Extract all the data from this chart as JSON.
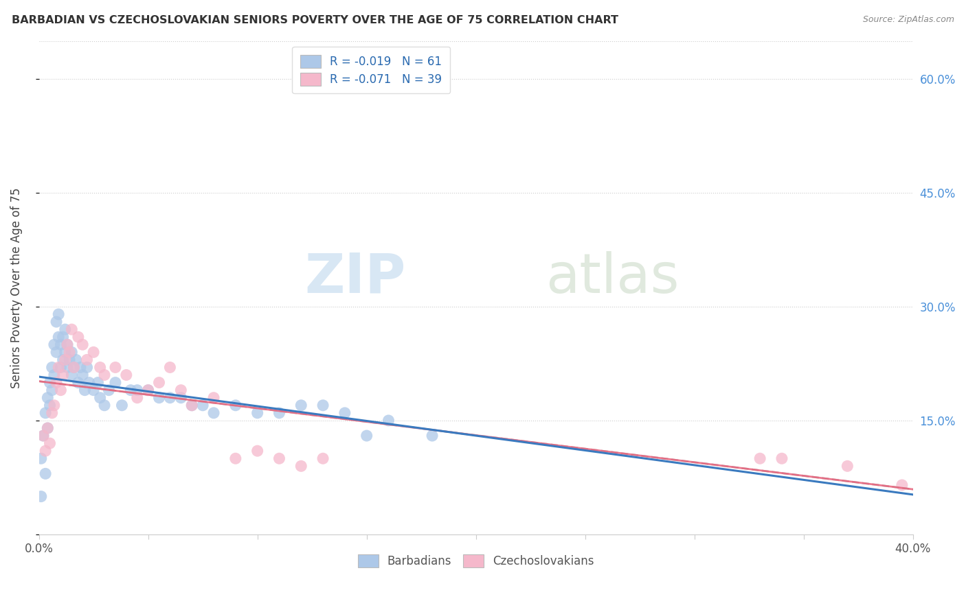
{
  "title": "BARBADIAN VS CZECHOSLOVAKIAN SENIORS POVERTY OVER THE AGE OF 75 CORRELATION CHART",
  "source": "Source: ZipAtlas.com",
  "ylabel": "Seniors Poverty Over the Age of 75",
  "xlim": [
    0.0,
    0.4
  ],
  "ylim": [
    0.0,
    0.65
  ],
  "yticks_right": [
    0.15,
    0.3,
    0.45,
    0.6
  ],
  "ytick_labels_right": [
    "15.0%",
    "30.0%",
    "45.0%",
    "60.0%"
  ],
  "barbadian_R": -0.019,
  "barbadian_N": 61,
  "czechoslovakian_R": -0.071,
  "czechoslovakian_N": 39,
  "barbadian_color": "#adc8e8",
  "czechoslovakian_color": "#f5b8cb",
  "barbadian_line_color": "#3a7abf",
  "czechoslovakian_line_color": "#e8607a",
  "barbadian_x": [
    0.001,
    0.001,
    0.002,
    0.003,
    0.003,
    0.004,
    0.004,
    0.005,
    0.005,
    0.006,
    0.006,
    0.007,
    0.007,
    0.008,
    0.008,
    0.009,
    0.009,
    0.01,
    0.01,
    0.011,
    0.011,
    0.012,
    0.012,
    0.013,
    0.013,
    0.014,
    0.015,
    0.015,
    0.016,
    0.017,
    0.018,
    0.019,
    0.02,
    0.021,
    0.022,
    0.023,
    0.025,
    0.027,
    0.028,
    0.03,
    0.032,
    0.035,
    0.038,
    0.042,
    0.045,
    0.05,
    0.055,
    0.06,
    0.065,
    0.07,
    0.075,
    0.08,
    0.09,
    0.1,
    0.11,
    0.12,
    0.13,
    0.14,
    0.15,
    0.16,
    0.18
  ],
  "barbadian_y": [
    0.05,
    0.1,
    0.13,
    0.08,
    0.16,
    0.14,
    0.18,
    0.17,
    0.2,
    0.19,
    0.22,
    0.21,
    0.25,
    0.24,
    0.28,
    0.26,
    0.29,
    0.25,
    0.22,
    0.26,
    0.23,
    0.24,
    0.27,
    0.22,
    0.25,
    0.23,
    0.24,
    0.21,
    0.22,
    0.23,
    0.2,
    0.22,
    0.21,
    0.19,
    0.22,
    0.2,
    0.19,
    0.2,
    0.18,
    0.17,
    0.19,
    0.2,
    0.17,
    0.19,
    0.19,
    0.19,
    0.18,
    0.18,
    0.18,
    0.17,
    0.17,
    0.16,
    0.17,
    0.16,
    0.16,
    0.17,
    0.17,
    0.16,
    0.13,
    0.15,
    0.13
  ],
  "czechoslovakian_x": [
    0.002,
    0.003,
    0.004,
    0.005,
    0.006,
    0.007,
    0.008,
    0.009,
    0.01,
    0.011,
    0.012,
    0.013,
    0.014,
    0.015,
    0.016,
    0.018,
    0.02,
    0.022,
    0.025,
    0.028,
    0.03,
    0.035,
    0.04,
    0.045,
    0.05,
    0.055,
    0.06,
    0.065,
    0.07,
    0.08,
    0.09,
    0.1,
    0.11,
    0.12,
    0.13,
    0.33,
    0.34,
    0.37,
    0.395
  ],
  "czechoslovakian_y": [
    0.13,
    0.11,
    0.14,
    0.12,
    0.16,
    0.17,
    0.2,
    0.22,
    0.19,
    0.21,
    0.23,
    0.25,
    0.24,
    0.27,
    0.22,
    0.26,
    0.25,
    0.23,
    0.24,
    0.22,
    0.21,
    0.22,
    0.21,
    0.18,
    0.19,
    0.2,
    0.22,
    0.19,
    0.17,
    0.18,
    0.1,
    0.11,
    0.1,
    0.09,
    0.1,
    0.1,
    0.1,
    0.09,
    0.065
  ]
}
